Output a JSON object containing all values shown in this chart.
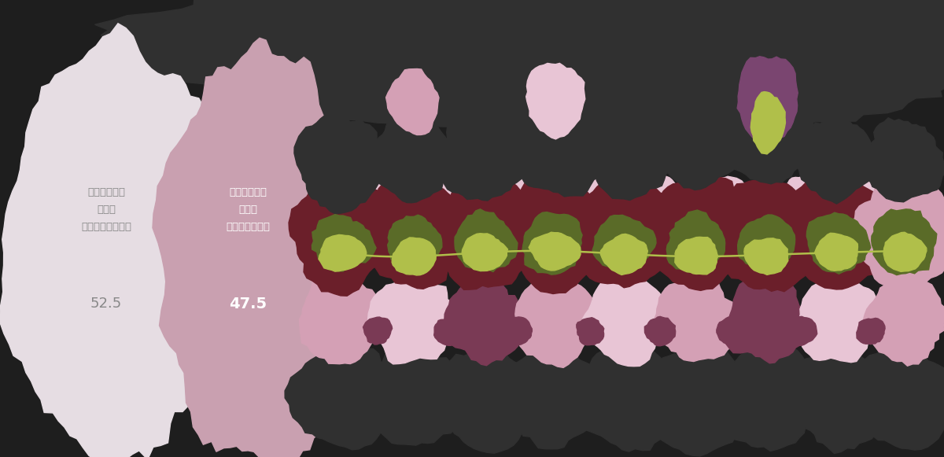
{
  "fig1_label1": "普段の生活に\nお花を\n取り入れていない",
  "fig1_label2": "普段の生活に\nお花を\n取り入れている",
  "fig1_val1": "52.5",
  "fig1_val2": "47.5",
  "fig1_color1": "#e6dde3",
  "fig1_color2": "#c9a0b0",
  "background_color": "#1e1e1e",
  "dark": "#303030",
  "darkred": "#6b1f2a",
  "mauve": "#7a3a55",
  "pink": "#d4a0b5",
  "lightpink": "#e8c5d5",
  "olive": "#5a6b28",
  "lime": "#b0bf4a",
  "purple": "#7a4570",
  "text_gray": "#888888",
  "text_white": "#ffffff"
}
